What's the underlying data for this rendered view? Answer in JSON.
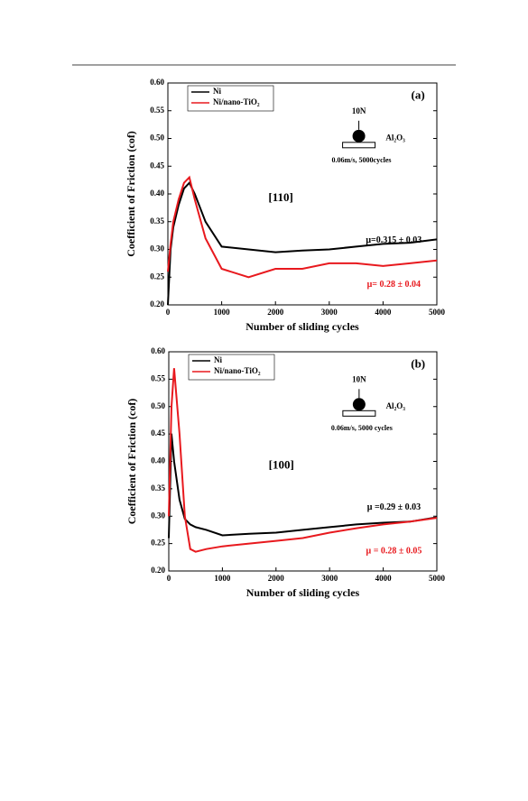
{
  "chart_data": [
    {
      "type": "line",
      "x_label": "Number of sliding cycles",
      "y_label": "Coefficient of Friction (cof)",
      "xlim": [
        0,
        5000
      ],
      "xticks": [
        0,
        1000,
        2000,
        3000,
        4000,
        5000
      ],
      "ylim": [
        0.2,
        0.6
      ],
      "yticks": [
        {
          "value": 0.2,
          "label": "0.20"
        },
        {
          "value": 0.25,
          "label": "0.25"
        },
        {
          "value": 0.3,
          "label": "0.30"
        },
        {
          "value": 0.35,
          "label": "0.35"
        },
        {
          "value": 0.4,
          "label": "0.40"
        },
        {
          "value": 0.45,
          "label": "0.45"
        },
        {
          "value": 0.5,
          "label": "0.50"
        },
        {
          "value": 0.55,
          "label": "0.55"
        },
        {
          "value": 0.6,
          "label": "0.60"
        }
      ],
      "legend": "upper left",
      "x": [
        0,
        50,
        100,
        200,
        300,
        400,
        500,
        700,
        1000,
        1500,
        2000,
        2500,
        3000,
        3500,
        4000,
        4500,
        5000
      ],
      "series": [
        {
          "name": "Ni",
          "color": "#000000",
          "values": [
            0.2,
            0.3,
            0.34,
            0.38,
            0.41,
            0.42,
            0.4,
            0.35,
            0.305,
            0.3,
            0.295,
            0.298,
            0.3,
            0.305,
            0.31,
            0.312,
            0.318
          ]
        },
        {
          "name": "Ni/nano-TiO₂",
          "color": "#e8191e",
          "values": [
            0.26,
            0.31,
            0.35,
            0.39,
            0.42,
            0.43,
            0.39,
            0.32,
            0.265,
            0.25,
            0.265,
            0.265,
            0.275,
            0.275,
            0.27,
            0.275,
            0.28
          ]
        }
      ],
      "annotations": [
        {
          "text": "(a)",
          "color": "#000000"
        },
        {
          "text": "10N",
          "color": "#000000"
        },
        {
          "text": "Al₂O₃",
          "color": "#000000"
        },
        {
          "text": "0.06m/s, 5000cycles",
          "color": "#000000"
        },
        {
          "text": "[110]",
          "color": "#000000"
        },
        {
          "text": "μ=0.315 ± 0.03",
          "color": "#000000"
        },
        {
          "text": "μ= 0.28 ± 0.04",
          "color": "#e8191e"
        }
      ]
    },
    {
      "type": "line",
      "x_label": "Number of sliding cycles",
      "y_label": "Coefficient of Friction (cof)",
      "xlim": [
        0,
        5000
      ],
      "xticks": [
        0,
        1000,
        2000,
        3000,
        4000,
        5000
      ],
      "ylim": [
        0.2,
        0.6
      ],
      "yticks": [
        {
          "value": 0.2,
          "label": "0.20"
        },
        {
          "value": 0.25,
          "label": "0.25"
        },
        {
          "value": 0.3,
          "label": "0.30"
        },
        {
          "value": 0.35,
          "label": "0.35"
        },
        {
          "value": 0.4,
          "label": "0.40"
        },
        {
          "value": 0.45,
          "label": "0.45"
        },
        {
          "value": 0.5,
          "label": "0.50"
        },
        {
          "value": 0.55,
          "label": "0.55"
        },
        {
          "value": 0.6,
          "label": "0.60"
        }
      ],
      "legend": "upper left",
      "x": [
        0,
        50,
        100,
        200,
        300,
        400,
        500,
        700,
        1000,
        1500,
        2000,
        2500,
        3000,
        3500,
        4000,
        4500,
        5000
      ],
      "series": [
        {
          "name": "Ni",
          "color": "#000000",
          "values": [
            0.26,
            0.45,
            0.4,
            0.33,
            0.295,
            0.285,
            0.28,
            0.275,
            0.265,
            0.268,
            0.27,
            0.275,
            0.28,
            0.285,
            0.288,
            0.29,
            0.298
          ]
        },
        {
          "name": "Ni/nano-TiO₂",
          "color": "#e8191e",
          "values": [
            0.3,
            0.5,
            0.57,
            0.45,
            0.3,
            0.24,
            0.235,
            0.24,
            0.245,
            0.25,
            0.255,
            0.26,
            0.27,
            0.278,
            0.285,
            0.29,
            0.297
          ]
        }
      ],
      "annotations": [
        {
          "text": "(b)",
          "color": "#000000"
        },
        {
          "text": "10N",
          "color": "#000000"
        },
        {
          "text": "Al₂O₃",
          "color": "#000000"
        },
        {
          "text": "0.06m/s, 5000 cycles",
          "color": "#000000"
        },
        {
          "text": "[100]",
          "color": "#000000"
        },
        {
          "text": "μ =0.29 ± 0.03",
          "color": "#000000"
        },
        {
          "text": "μ = 0.28 ± 0.05",
          "color": "#e8191e"
        }
      ]
    }
  ]
}
